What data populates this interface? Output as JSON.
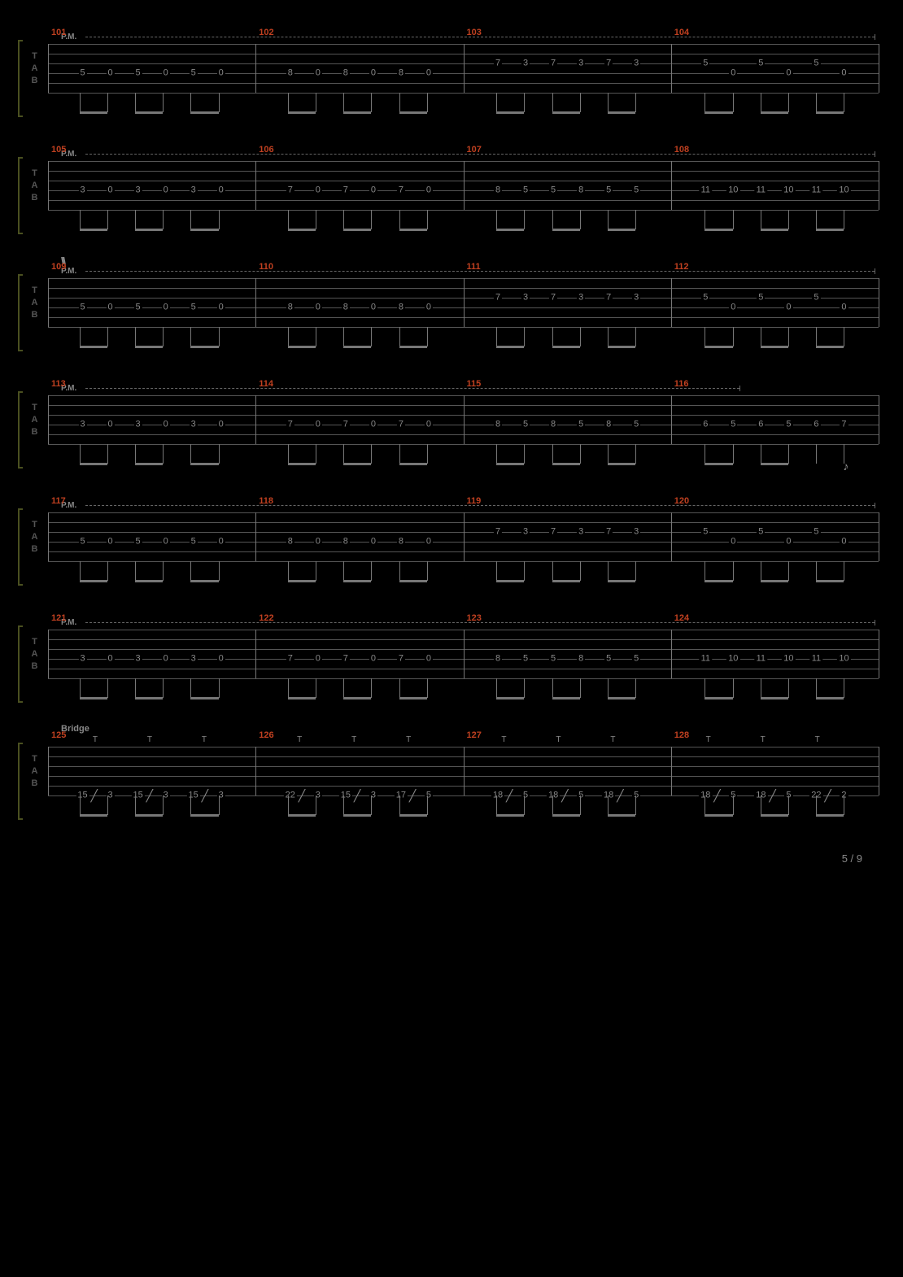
{
  "page": {
    "current": 5,
    "total": 9
  },
  "colors": {
    "bg": "#000000",
    "staff_line": "#555555",
    "note": "#888888",
    "measure_num": "#c04020",
    "bracket": "#4a5020"
  },
  "clef_letters": [
    "T",
    "A",
    "B"
  ],
  "layout": {
    "staff_width": 990,
    "string_spacing": 12,
    "strings": 6,
    "measures_per_system": 4,
    "notes_per_measure": 6
  },
  "systems": [
    {
      "measure_start": 101,
      "pm": {
        "label": "P.M.",
        "start_pct": 3,
        "end_pct": 99.5
      },
      "measures": [
        {
          "notes": [
            {
              "s": 3,
              "f": "5"
            },
            {
              "s": 3,
              "f": "0"
            },
            {
              "s": 3,
              "f": "5"
            },
            {
              "s": 3,
              "f": "0"
            },
            {
              "s": 3,
              "f": "5"
            },
            {
              "s": 3,
              "f": "0"
            }
          ]
        },
        {
          "notes": [
            {
              "s": 3,
              "f": "8"
            },
            {
              "s": 3,
              "f": "0"
            },
            {
              "s": 3,
              "f": "8"
            },
            {
              "s": 3,
              "f": "0"
            },
            {
              "s": 3,
              "f": "8"
            },
            {
              "s": 3,
              "f": "0"
            }
          ]
        },
        {
          "notes": [
            {
              "s": 2,
              "f": "7"
            },
            {
              "s": 2,
              "f": "3"
            },
            {
              "s": 2,
              "f": "7"
            },
            {
              "s": 2,
              "f": "3"
            },
            {
              "s": 2,
              "f": "7"
            },
            {
              "s": 2,
              "f": "3"
            }
          ]
        },
        {
          "notes": [
            {
              "s": 2,
              "f": "5"
            },
            {
              "s": 3,
              "f": "0"
            },
            {
              "s": 2,
              "f": "5"
            },
            {
              "s": 3,
              "f": "0"
            },
            {
              "s": 2,
              "f": "5"
            },
            {
              "s": 3,
              "f": "0"
            }
          ]
        }
      ]
    },
    {
      "measure_start": 105,
      "pm": {
        "label": "P.M.",
        "start_pct": 3,
        "end_pct": 99.5
      },
      "measures": [
        {
          "notes": [
            {
              "s": 3,
              "f": "3"
            },
            {
              "s": 3,
              "f": "0"
            },
            {
              "s": 3,
              "f": "3"
            },
            {
              "s": 3,
              "f": "0"
            },
            {
              "s": 3,
              "f": "3"
            },
            {
              "s": 3,
              "f": "0"
            }
          ]
        },
        {
          "notes": [
            {
              "s": 3,
              "f": "7"
            },
            {
              "s": 3,
              "f": "0"
            },
            {
              "s": 3,
              "f": "7"
            },
            {
              "s": 3,
              "f": "0"
            },
            {
              "s": 3,
              "f": "7"
            },
            {
              "s": 3,
              "f": "0"
            }
          ]
        },
        {
          "notes": [
            {
              "s": 3,
              "f": "8"
            },
            {
              "s": 3,
              "f": "5"
            },
            {
              "s": 3,
              "f": "5"
            },
            {
              "s": 3,
              "f": "8"
            },
            {
              "s": 3,
              "f": "5"
            },
            {
              "s": 3,
              "f": "5"
            }
          ]
        },
        {
          "notes": [
            {
              "s": 3,
              "f": "11"
            },
            {
              "s": 3,
              "f": "10"
            },
            {
              "s": 3,
              "f": "11"
            },
            {
              "s": 3,
              "f": "10"
            },
            {
              "s": 3,
              "f": "11"
            },
            {
              "s": 3,
              "f": "10"
            }
          ]
        }
      ]
    },
    {
      "measure_start": 109,
      "pm": {
        "label": "P.M.",
        "start_pct": 3,
        "end_pct": 99.5
      },
      "pre_label": "\\\\\\",
      "measures": [
        {
          "notes": [
            {
              "s": 3,
              "f": "5"
            },
            {
              "s": 3,
              "f": "0"
            },
            {
              "s": 3,
              "f": "5"
            },
            {
              "s": 3,
              "f": "0"
            },
            {
              "s": 3,
              "f": "5"
            },
            {
              "s": 3,
              "f": "0"
            }
          ]
        },
        {
          "notes": [
            {
              "s": 3,
              "f": "8"
            },
            {
              "s": 3,
              "f": "0"
            },
            {
              "s": 3,
              "f": "8"
            },
            {
              "s": 3,
              "f": "0"
            },
            {
              "s": 3,
              "f": "8"
            },
            {
              "s": 3,
              "f": "0"
            }
          ]
        },
        {
          "notes": [
            {
              "s": 2,
              "f": "7"
            },
            {
              "s": 2,
              "f": "3"
            },
            {
              "s": 2,
              "f": "7"
            },
            {
              "s": 2,
              "f": "3"
            },
            {
              "s": 2,
              "f": "7"
            },
            {
              "s": 2,
              "f": "3"
            }
          ]
        },
        {
          "notes": [
            {
              "s": 2,
              "f": "5"
            },
            {
              "s": 3,
              "f": "0"
            },
            {
              "s": 2,
              "f": "5"
            },
            {
              "s": 3,
              "f": "0"
            },
            {
              "s": 2,
              "f": "5"
            },
            {
              "s": 3,
              "f": "0"
            }
          ]
        }
      ]
    },
    {
      "measure_start": 113,
      "pm": {
        "label": "P.M.",
        "start_pct": 3,
        "end_pct": 83
      },
      "measures": [
        {
          "notes": [
            {
              "s": 3,
              "f": "3"
            },
            {
              "s": 3,
              "f": "0"
            },
            {
              "s": 3,
              "f": "3"
            },
            {
              "s": 3,
              "f": "0"
            },
            {
              "s": 3,
              "f": "3"
            },
            {
              "s": 3,
              "f": "0"
            }
          ]
        },
        {
          "notes": [
            {
              "s": 3,
              "f": "7"
            },
            {
              "s": 3,
              "f": "0"
            },
            {
              "s": 3,
              "f": "7"
            },
            {
              "s": 3,
              "f": "0"
            },
            {
              "s": 3,
              "f": "7"
            },
            {
              "s": 3,
              "f": "0"
            }
          ]
        },
        {
          "notes": [
            {
              "s": 3,
              "f": "8"
            },
            {
              "s": 3,
              "f": "5"
            },
            {
              "s": 3,
              "f": "8"
            },
            {
              "s": 3,
              "f": "5"
            },
            {
              "s": 3,
              "f": "8"
            },
            {
              "s": 3,
              "f": "5"
            }
          ]
        },
        {
          "notes": [
            {
              "s": 3,
              "f": "6"
            },
            {
              "s": 3,
              "f": "5"
            },
            {
              "s": 3,
              "f": "6"
            },
            {
              "s": 3,
              "f": "5"
            },
            {
              "s": 3,
              "f": "6"
            },
            {
              "s": 3,
              "f": "7",
              "flag": true
            }
          ]
        }
      ]
    },
    {
      "measure_start": 117,
      "pm": {
        "label": "P.M.",
        "start_pct": 3,
        "end_pct": 99.5
      },
      "measures": [
        {
          "notes": [
            {
              "s": 3,
              "f": "5"
            },
            {
              "s": 3,
              "f": "0"
            },
            {
              "s": 3,
              "f": "5"
            },
            {
              "s": 3,
              "f": "0"
            },
            {
              "s": 3,
              "f": "5"
            },
            {
              "s": 3,
              "f": "0"
            }
          ]
        },
        {
          "notes": [
            {
              "s": 3,
              "f": "8"
            },
            {
              "s": 3,
              "f": "0"
            },
            {
              "s": 3,
              "f": "8"
            },
            {
              "s": 3,
              "f": "0"
            },
            {
              "s": 3,
              "f": "8"
            },
            {
              "s": 3,
              "f": "0"
            }
          ]
        },
        {
          "notes": [
            {
              "s": 2,
              "f": "7"
            },
            {
              "s": 2,
              "f": "3"
            },
            {
              "s": 2,
              "f": "7"
            },
            {
              "s": 2,
              "f": "3"
            },
            {
              "s": 2,
              "f": "7"
            },
            {
              "s": 2,
              "f": "3"
            }
          ]
        },
        {
          "notes": [
            {
              "s": 2,
              "f": "5"
            },
            {
              "s": 3,
              "f": "0"
            },
            {
              "s": 2,
              "f": "5"
            },
            {
              "s": 3,
              "f": "0"
            },
            {
              "s": 2,
              "f": "5"
            },
            {
              "s": 3,
              "f": "0"
            }
          ]
        }
      ]
    },
    {
      "measure_start": 121,
      "pm": {
        "label": "P.M.",
        "start_pct": 3,
        "end_pct": 99.5
      },
      "measures": [
        {
          "notes": [
            {
              "s": 3,
              "f": "3"
            },
            {
              "s": 3,
              "f": "0"
            },
            {
              "s": 3,
              "f": "3"
            },
            {
              "s": 3,
              "f": "0"
            },
            {
              "s": 3,
              "f": "3"
            },
            {
              "s": 3,
              "f": "0"
            }
          ]
        },
        {
          "notes": [
            {
              "s": 3,
              "f": "7"
            },
            {
              "s": 3,
              "f": "0"
            },
            {
              "s": 3,
              "f": "7"
            },
            {
              "s": 3,
              "f": "0"
            },
            {
              "s": 3,
              "f": "7"
            },
            {
              "s": 3,
              "f": "0"
            }
          ]
        },
        {
          "notes": [
            {
              "s": 3,
              "f": "8"
            },
            {
              "s": 3,
              "f": "5"
            },
            {
              "s": 3,
              "f": "5"
            },
            {
              "s": 3,
              "f": "8"
            },
            {
              "s": 3,
              "f": "5"
            },
            {
              "s": 3,
              "f": "5"
            }
          ]
        },
        {
          "notes": [
            {
              "s": 3,
              "f": "11"
            },
            {
              "s": 3,
              "f": "10"
            },
            {
              "s": 3,
              "f": "11"
            },
            {
              "s": 3,
              "f": "10"
            },
            {
              "s": 3,
              "f": "11"
            },
            {
              "s": 3,
              "f": "10"
            }
          ]
        }
      ]
    },
    {
      "measure_start": 125,
      "section": "Bridge",
      "t_markers": true,
      "measures": [
        {
          "notes": [
            {
              "s": 5,
              "f": "15",
              "slide": "up"
            },
            {
              "s": 5,
              "f": "3"
            },
            {
              "s": 5,
              "f": "15",
              "slide": "up"
            },
            {
              "s": 5,
              "f": "3"
            },
            {
              "s": 5,
              "f": "15",
              "slide": "up"
            },
            {
              "s": 5,
              "f": "3"
            }
          ]
        },
        {
          "notes": [
            {
              "s": 5,
              "f": "22",
              "slide": "up"
            },
            {
              "s": 5,
              "f": "3"
            },
            {
              "s": 5,
              "f": "15",
              "slide": "up"
            },
            {
              "s": 5,
              "f": "3"
            },
            {
              "s": 5,
              "f": "17",
              "slide": "up"
            },
            {
              "s": 5,
              "f": "5"
            }
          ]
        },
        {
          "notes": [
            {
              "s": 5,
              "f": "18",
              "slide": "up"
            },
            {
              "s": 5,
              "f": "5"
            },
            {
              "s": 5,
              "f": "18",
              "slide": "up"
            },
            {
              "s": 5,
              "f": "5"
            },
            {
              "s": 5,
              "f": "18",
              "slide": "up"
            },
            {
              "s": 5,
              "f": "5"
            }
          ]
        },
        {
          "notes": [
            {
              "s": 5,
              "f": "18",
              "slide": "up"
            },
            {
              "s": 5,
              "f": "5"
            },
            {
              "s": 5,
              "f": "18",
              "slide": "up"
            },
            {
              "s": 5,
              "f": "5"
            },
            {
              "s": 5,
              "f": "22",
              "slide": "up"
            },
            {
              "s": 5,
              "f": "2"
            }
          ]
        }
      ]
    }
  ]
}
